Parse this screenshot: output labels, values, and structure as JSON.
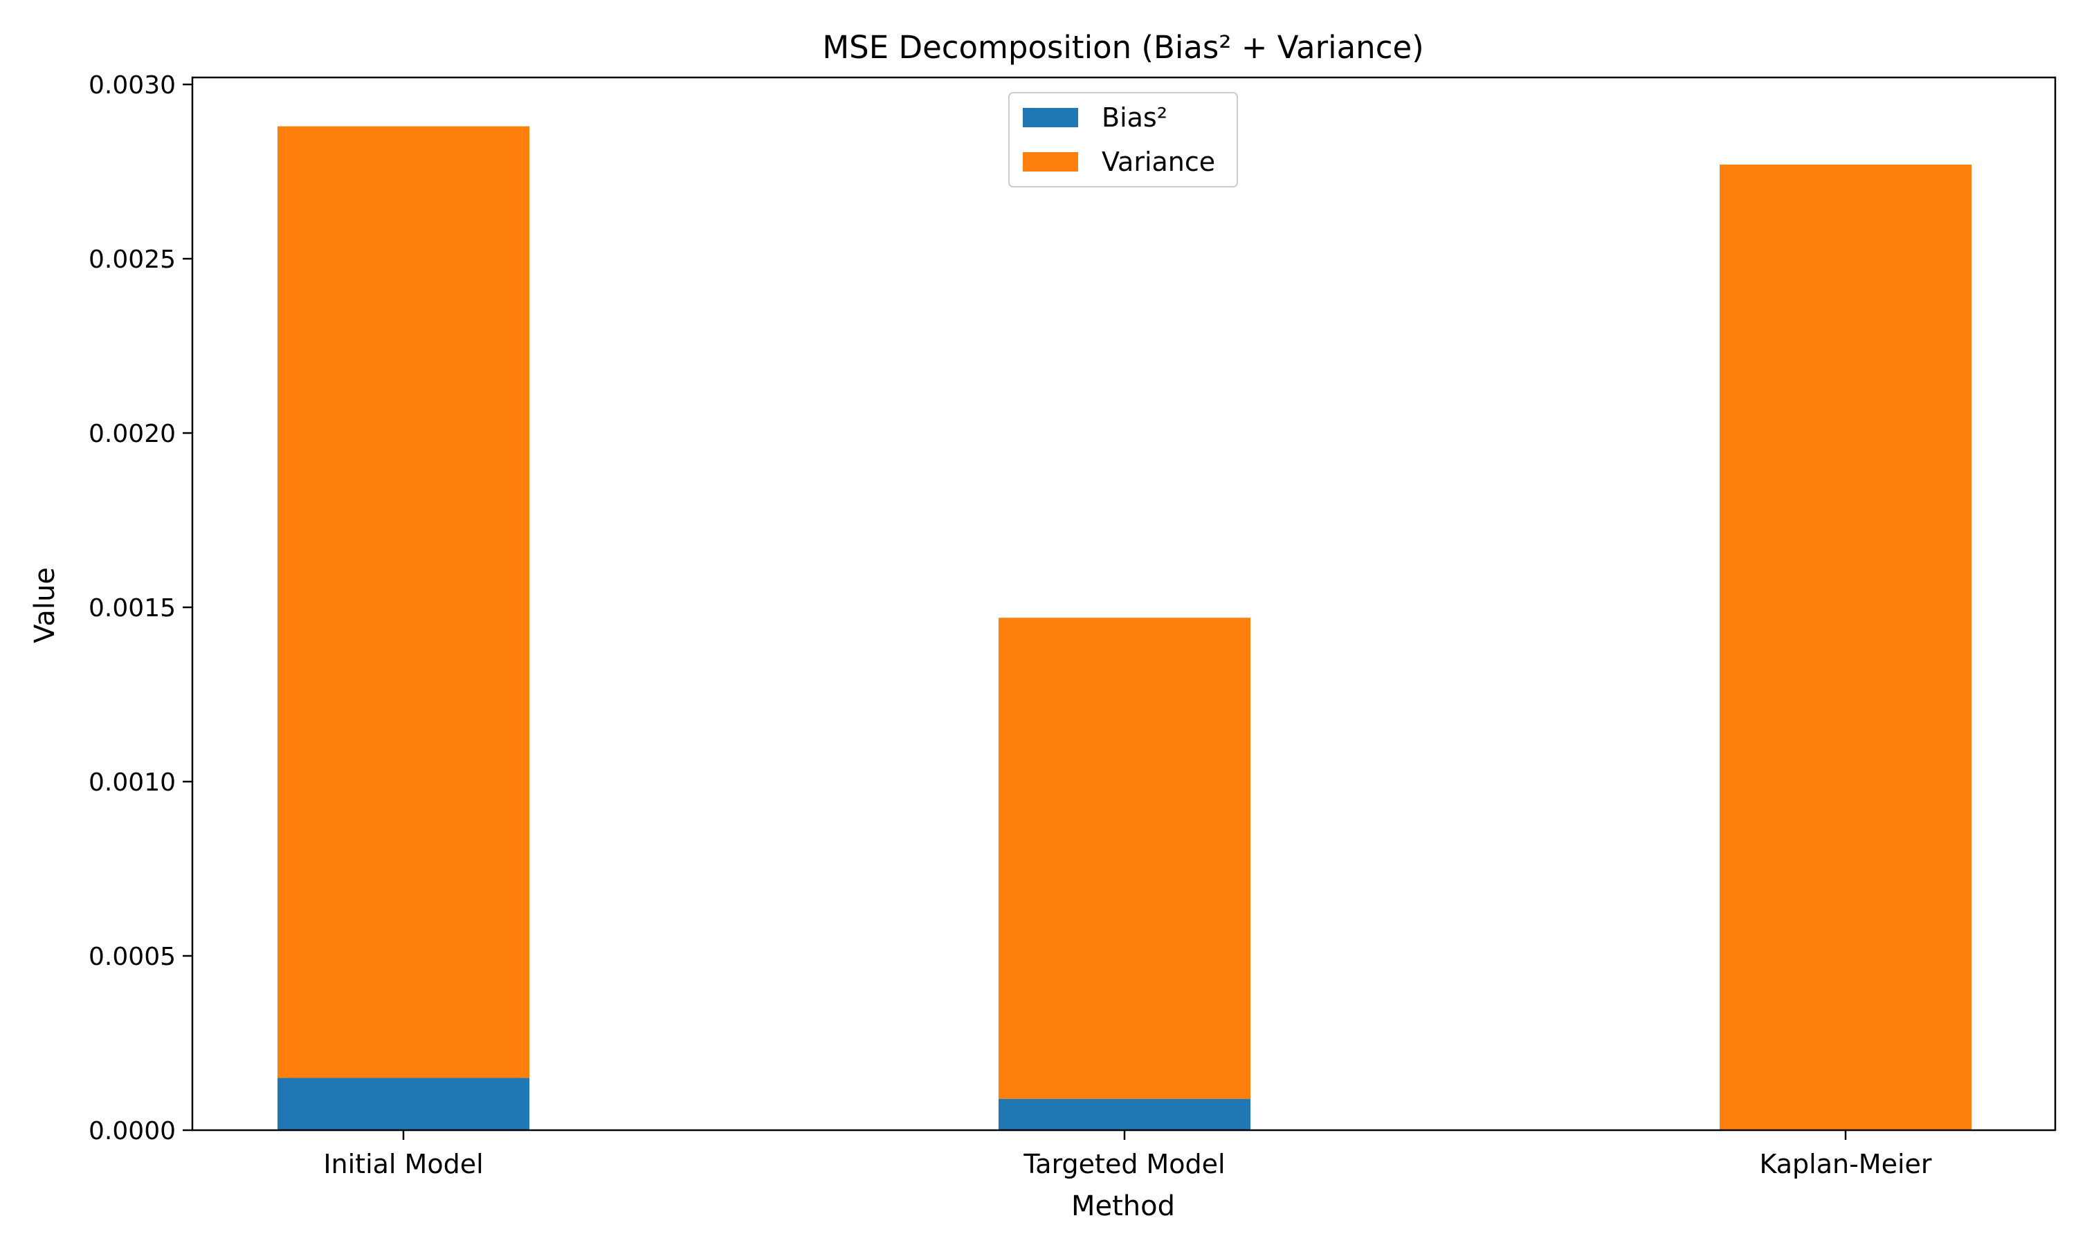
{
  "chart_data": {
    "type": "bar",
    "stacked": true,
    "title": "MSE Decomposition (Bias² + Variance)",
    "xlabel": "Method",
    "ylabel": "Value",
    "categories": [
      "Initial Model",
      "Targeted Model",
      "Kaplan-Meier"
    ],
    "series": [
      {
        "name": "Bias²",
        "values": [
          0.00015,
          9e-05,
          0.0
        ],
        "color": "#1f77b4"
      },
      {
        "name": "Variance",
        "values": [
          0.00273,
          0.00138,
          0.00277
        ],
        "color": "#ff7f0e"
      }
    ],
    "ylim": [
      0,
      0.00302
    ],
    "yticks": [
      0.0,
      0.0005,
      0.001,
      0.0015,
      0.002,
      0.0025,
      0.003
    ],
    "ytick_labels": [
      "0.0000",
      "0.0005",
      "0.0010",
      "0.0015",
      "0.0020",
      "0.0025",
      "0.0030"
    ],
    "legend": {
      "location": "upper center"
    },
    "grid": false
  }
}
